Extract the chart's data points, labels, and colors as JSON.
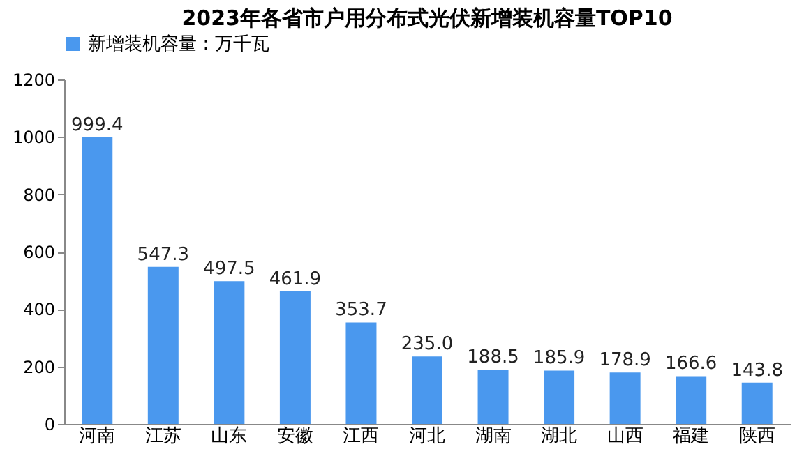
{
  "chart_data": {
    "type": "bar",
    "title": "2023年各省市户用分布式光伏新增装机容量TOP10",
    "categories": [
      "河南",
      "江苏",
      "山东",
      "安徽",
      "江西",
      "河北",
      "湖南",
      "湖北",
      "山西",
      "福建",
      "陕西"
    ],
    "series": [
      {
        "name": "新增装机容量：万千瓦",
        "color": "#4a98ee",
        "values": [
          999.4,
          547.3,
          497.5,
          461.9,
          353.7,
          235.0,
          188.5,
          185.9,
          178.9,
          166.6,
          143.8
        ]
      }
    ],
    "value_labels": [
      "999.4",
      "547.3",
      "497.5",
      "461.9",
      "353.7",
      "235.0",
      "188.5",
      "185.9",
      "178.9",
      "166.6",
      "143.8"
    ],
    "ylim": [
      0,
      1200
    ],
    "yticks": [
      0,
      200,
      400,
      600,
      800,
      1000,
      1200
    ],
    "grid": false,
    "legend": "top"
  }
}
